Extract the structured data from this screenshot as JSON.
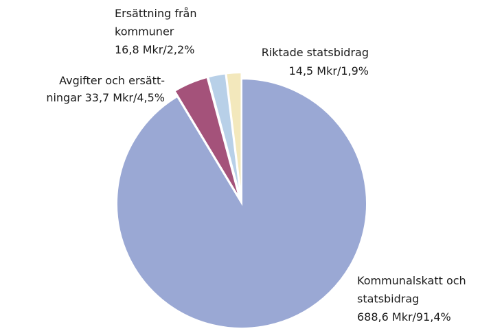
{
  "chart_data": {
    "type": "pie",
    "categories": [
      [
        "Kommunalskatt och",
        "statsbidrag"
      ],
      [
        "Avgifter och ersätt-",
        "ningar"
      ],
      [
        "Ersättning från",
        "kommuner"
      ],
      [
        "Riktade statsbidrag"
      ]
    ],
    "values": [
      688.6,
      33.7,
      16.8,
      14.5
    ],
    "value_labels": [
      "688,6 Mkr/91,4%",
      "33,7 Mkr/4,5%",
      "16,8 Mkr/2,2%",
      "14,5 Mkr/1,9%"
    ],
    "colors": [
      "#9aa8d4",
      "#a4527a",
      "#b8d0e8",
      "#f3e8bc"
    ]
  }
}
